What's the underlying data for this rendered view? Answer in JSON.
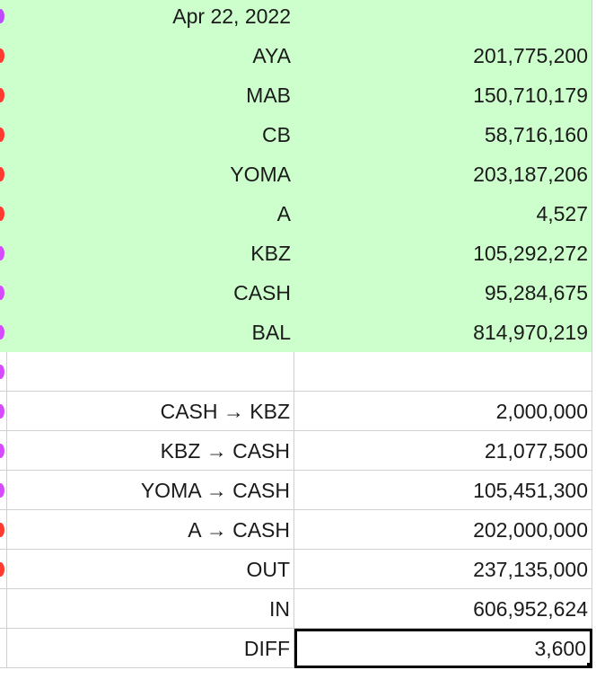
{
  "rows": [
    {
      "label": "Apr 22, 2022",
      "value": "",
      "edge": "#c04aff",
      "band": "green"
    },
    {
      "label": "AYA",
      "value": "201,775,200",
      "edge": "#ff3b2f",
      "band": "green"
    },
    {
      "label": "MAB",
      "value": "150,710,179",
      "edge": "#ff3b2f",
      "band": "green"
    },
    {
      "label": "CB",
      "value": "58,716,160",
      "edge": "#ff3b2f",
      "band": "green"
    },
    {
      "label": "YOMA",
      "value": "203,187,206",
      "edge": "#ff3b2f",
      "band": "green"
    },
    {
      "label": "A",
      "value": "4,527",
      "edge": "#ff3b2f",
      "band": "green"
    },
    {
      "label": "KBZ",
      "value": "105,292,272",
      "edge": "#d64bff",
      "band": "green"
    },
    {
      "label": "CASH",
      "value": "95,284,675",
      "edge": "#d64bff",
      "band": "green"
    },
    {
      "label": "BAL",
      "value": "814,970,219",
      "edge": "#d64bff",
      "band": "green"
    },
    {
      "label": "",
      "value": "",
      "edge": "#d64bff",
      "band": "white"
    },
    {
      "label": "CASH → KBZ",
      "value": "2,000,000",
      "edge": "#d64bff",
      "band": "white"
    },
    {
      "label": "KBZ → CASH",
      "value": "21,077,500",
      "edge": "#d64bff",
      "band": "white"
    },
    {
      "label": "YOMA → CASH",
      "value": "105,451,300",
      "edge": "#d64bff",
      "band": "white"
    },
    {
      "label": "A → CASH",
      "value": "202,000,000",
      "edge": "#ff3b2f",
      "band": "white"
    },
    {
      "label": "OUT",
      "value": "237,135,000",
      "edge": "#ff3b2f",
      "band": "white"
    },
    {
      "label": "IN",
      "value": "606,952,624",
      "edge": "",
      "band": "white"
    },
    {
      "label": "DIFF",
      "value": "3,600",
      "edge": "",
      "band": "white",
      "selected": true
    }
  ]
}
